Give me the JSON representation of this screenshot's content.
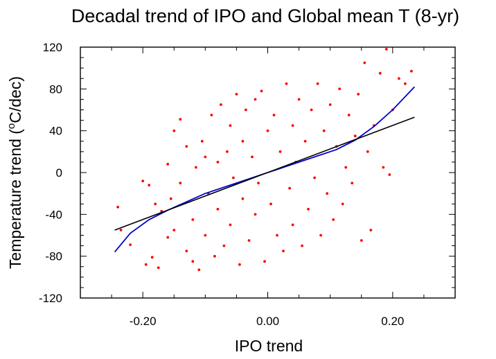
{
  "chart_data": {
    "type": "scatter",
    "title": "Decadal trend of IPO and Global mean T (8-yr)",
    "xlabel": "IPO trend",
    "ylabel_prefix": "Temperature trend (",
    "ylabel_sup": "o",
    "ylabel_suffix": "C/dec)",
    "xlim": [
      -0.3,
      0.3
    ],
    "ylim": [
      -120,
      120
    ],
    "x_ticks": [
      -0.2,
      0.0,
      0.2
    ],
    "x_tick_labels": [
      "-0.20",
      "0.00",
      "0.20"
    ],
    "y_ticks": [
      -120,
      -80,
      -40,
      0,
      40,
      80,
      120
    ],
    "y_tick_labels": [
      "-120",
      "-80",
      "-40",
      "0",
      "40",
      "80",
      "120"
    ],
    "grid": false,
    "point_color": "#ff0000",
    "linear_fit": {
      "color": "#000000",
      "x": [
        -0.245,
        0.235
      ],
      "y": [
        -55,
        53
      ]
    },
    "cubic_fit": {
      "color": "#0000cc",
      "x": [
        -0.245,
        -0.22,
        -0.19,
        -0.16,
        -0.13,
        -0.1,
        -0.07,
        -0.04,
        -0.01,
        0.02,
        0.05,
        0.08,
        0.11,
        0.14,
        0.17,
        0.2,
        0.235
      ],
      "y": [
        -76,
        -58,
        -45,
        -36,
        -28,
        -20,
        -14,
        -8,
        -2,
        4,
        10,
        16,
        22,
        31,
        44,
        60,
        82
      ]
    },
    "scatter_points": [
      [
        -0.24,
        -33
      ],
      [
        -0.235,
        -55
      ],
      [
        -0.22,
        -69
      ],
      [
        -0.2,
        -8
      ],
      [
        -0.195,
        -88
      ],
      [
        -0.19,
        -12
      ],
      [
        -0.185,
        -81
      ],
      [
        -0.18,
        -30
      ],
      [
        -0.175,
        -91
      ],
      [
        -0.17,
        -37
      ],
      [
        -0.16,
        8
      ],
      [
        -0.16,
        -62
      ],
      [
        -0.155,
        -25
      ],
      [
        -0.15,
        40
      ],
      [
        -0.15,
        -55
      ],
      [
        -0.14,
        -10
      ],
      [
        -0.14,
        51
      ],
      [
        -0.13,
        -75
      ],
      [
        -0.13,
        25
      ],
      [
        -0.12,
        -85
      ],
      [
        -0.12,
        -45
      ],
      [
        -0.115,
        5
      ],
      [
        -0.11,
        -93
      ],
      [
        -0.105,
        30
      ],
      [
        -0.1,
        -60
      ],
      [
        -0.1,
        15
      ],
      [
        -0.095,
        -20
      ],
      [
        -0.09,
        55
      ],
      [
        -0.085,
        -80
      ],
      [
        -0.08,
        10
      ],
      [
        -0.08,
        -35
      ],
      [
        -0.075,
        65
      ],
      [
        -0.07,
        -70
      ],
      [
        -0.065,
        20
      ],
      [
        -0.06,
        -50
      ],
      [
        -0.06,
        45
      ],
      [
        -0.055,
        -5
      ],
      [
        -0.05,
        75
      ],
      [
        -0.045,
        -88
      ],
      [
        -0.04,
        30
      ],
      [
        -0.04,
        -25
      ],
      [
        -0.035,
        60
      ],
      [
        -0.03,
        -65
      ],
      [
        -0.025,
        15
      ],
      [
        -0.02,
        -40
      ],
      [
        -0.02,
        70
      ],
      [
        -0.015,
        -10
      ],
      [
        -0.01,
        78
      ],
      [
        -0.005,
        -85
      ],
      [
        0.0,
        40
      ],
      [
        0.005,
        -30
      ],
      [
        0.01,
        55
      ],
      [
        0.015,
        -60
      ],
      [
        0.02,
        20
      ],
      [
        0.025,
        -75
      ],
      [
        0.03,
        85
      ],
      [
        0.035,
        -15
      ],
      [
        0.04,
        45
      ],
      [
        0.04,
        -50
      ],
      [
        0.045,
        10
      ],
      [
        0.05,
        70
      ],
      [
        0.055,
        -70
      ],
      [
        0.06,
        30
      ],
      [
        0.065,
        -35
      ],
      [
        0.07,
        60
      ],
      [
        0.075,
        -5
      ],
      [
        0.08,
        85
      ],
      [
        0.085,
        -60
      ],
      [
        0.09,
        40
      ],
      [
        0.095,
        -20
      ],
      [
        0.1,
        65
      ],
      [
        0.105,
        -45
      ],
      [
        0.11,
        25
      ],
      [
        0.115,
        80
      ],
      [
        0.12,
        -30
      ],
      [
        0.125,
        5
      ],
      [
        0.13,
        55
      ],
      [
        0.135,
        -10
      ],
      [
        0.14,
        35
      ],
      [
        0.145,
        75
      ],
      [
        0.15,
        -65
      ],
      [
        0.155,
        105
      ],
      [
        0.16,
        20
      ],
      [
        0.165,
        -55
      ],
      [
        0.17,
        45
      ],
      [
        0.18,
        95
      ],
      [
        0.185,
        5
      ],
      [
        0.19,
        118
      ],
      [
        0.195,
        -2
      ],
      [
        0.2,
        60
      ],
      [
        0.21,
        90
      ],
      [
        0.22,
        85
      ],
      [
        0.23,
        97
      ]
    ]
  }
}
